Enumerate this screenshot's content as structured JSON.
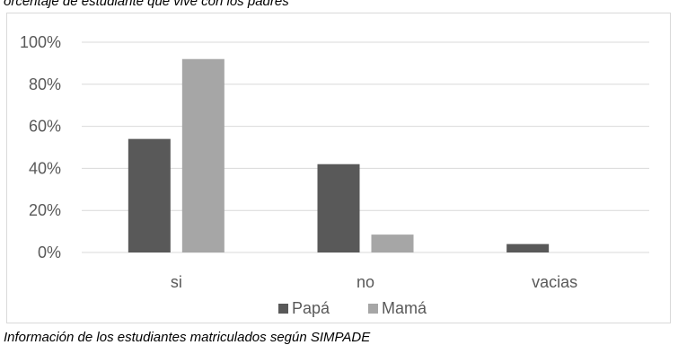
{
  "captions": {
    "top": "orcentaje de estudiante que vive con los padres",
    "bottom": "Información de los estudiantes matriculados según SIMPADE"
  },
  "chart_data": {
    "type": "bar",
    "categories": [
      "si",
      "no",
      "vacias"
    ],
    "series": [
      {
        "name": "Papá",
        "values": [
          54,
          42,
          4
        ],
        "color": "#595959"
      },
      {
        "name": "Mamá",
        "values": [
          92,
          8.5,
          0
        ],
        "color": "#a6a6a6"
      }
    ],
    "y_tick_labels": [
      "0%",
      "20%",
      "40%",
      "60%",
      "80%",
      "100%"
    ],
    "y_ticks": [
      0,
      20,
      40,
      60,
      80,
      100
    ],
    "ylim": [
      0,
      100
    ],
    "grid": true,
    "legend_position": "bottom"
  }
}
